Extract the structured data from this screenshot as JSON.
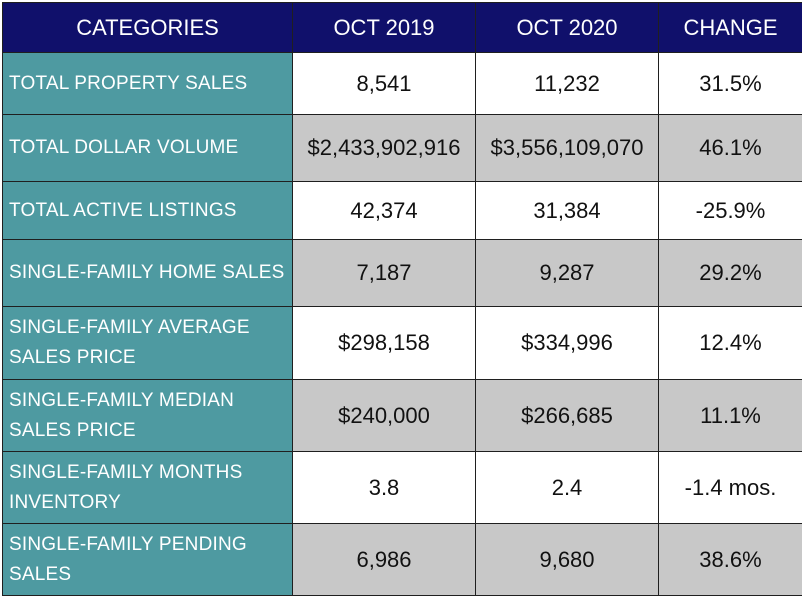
{
  "header": {
    "categories": "CATEGORIES",
    "oct2019": "OCT 2019",
    "oct2020": "OCT 2020",
    "change": "CHANGE"
  },
  "rows": [
    {
      "category": "TOTAL PROPERTY SALES",
      "oct2019": "8,541",
      "oct2020": "11,232",
      "change": "31.5%"
    },
    {
      "category": "TOTAL DOLLAR VOLUME",
      "oct2019": "$2,433,902,916",
      "oct2020": "$3,556,109,070",
      "change": "46.1%"
    },
    {
      "category": "TOTAL ACTIVE LISTINGS",
      "oct2019": "42,374",
      "oct2020": "31,384",
      "change": "-25.9%"
    },
    {
      "category": "SINGLE-FAMILY HOME SALES",
      "oct2019": "7,187",
      "oct2020": "9,287",
      "change": "29.2%"
    },
    {
      "category": "SINGLE-FAMILY AVERAGE SALES PRICE",
      "oct2019": "$298,158",
      "oct2020": "$334,996",
      "change": "12.4%"
    },
    {
      "category": "SINGLE-FAMILY MEDIAN SALES PRICE",
      "oct2019": "$240,000",
      "oct2020": "$266,685",
      "change": "11.1%"
    },
    {
      "category": "SINGLE-FAMILY MONTHS INVENTORY",
      "oct2019": "3.8",
      "oct2020": "2.4",
      "change": "-1.4 mos."
    },
    {
      "category": "SINGLE-FAMILY PENDING SALES",
      "oct2019": "6,986",
      "oct2020": "9,680",
      "change": "38.6%"
    }
  ],
  "colors": {
    "header_bg": "#10106b",
    "category_bg": "#4e9aa1",
    "alt_row_bg": "#c8c8c8"
  }
}
